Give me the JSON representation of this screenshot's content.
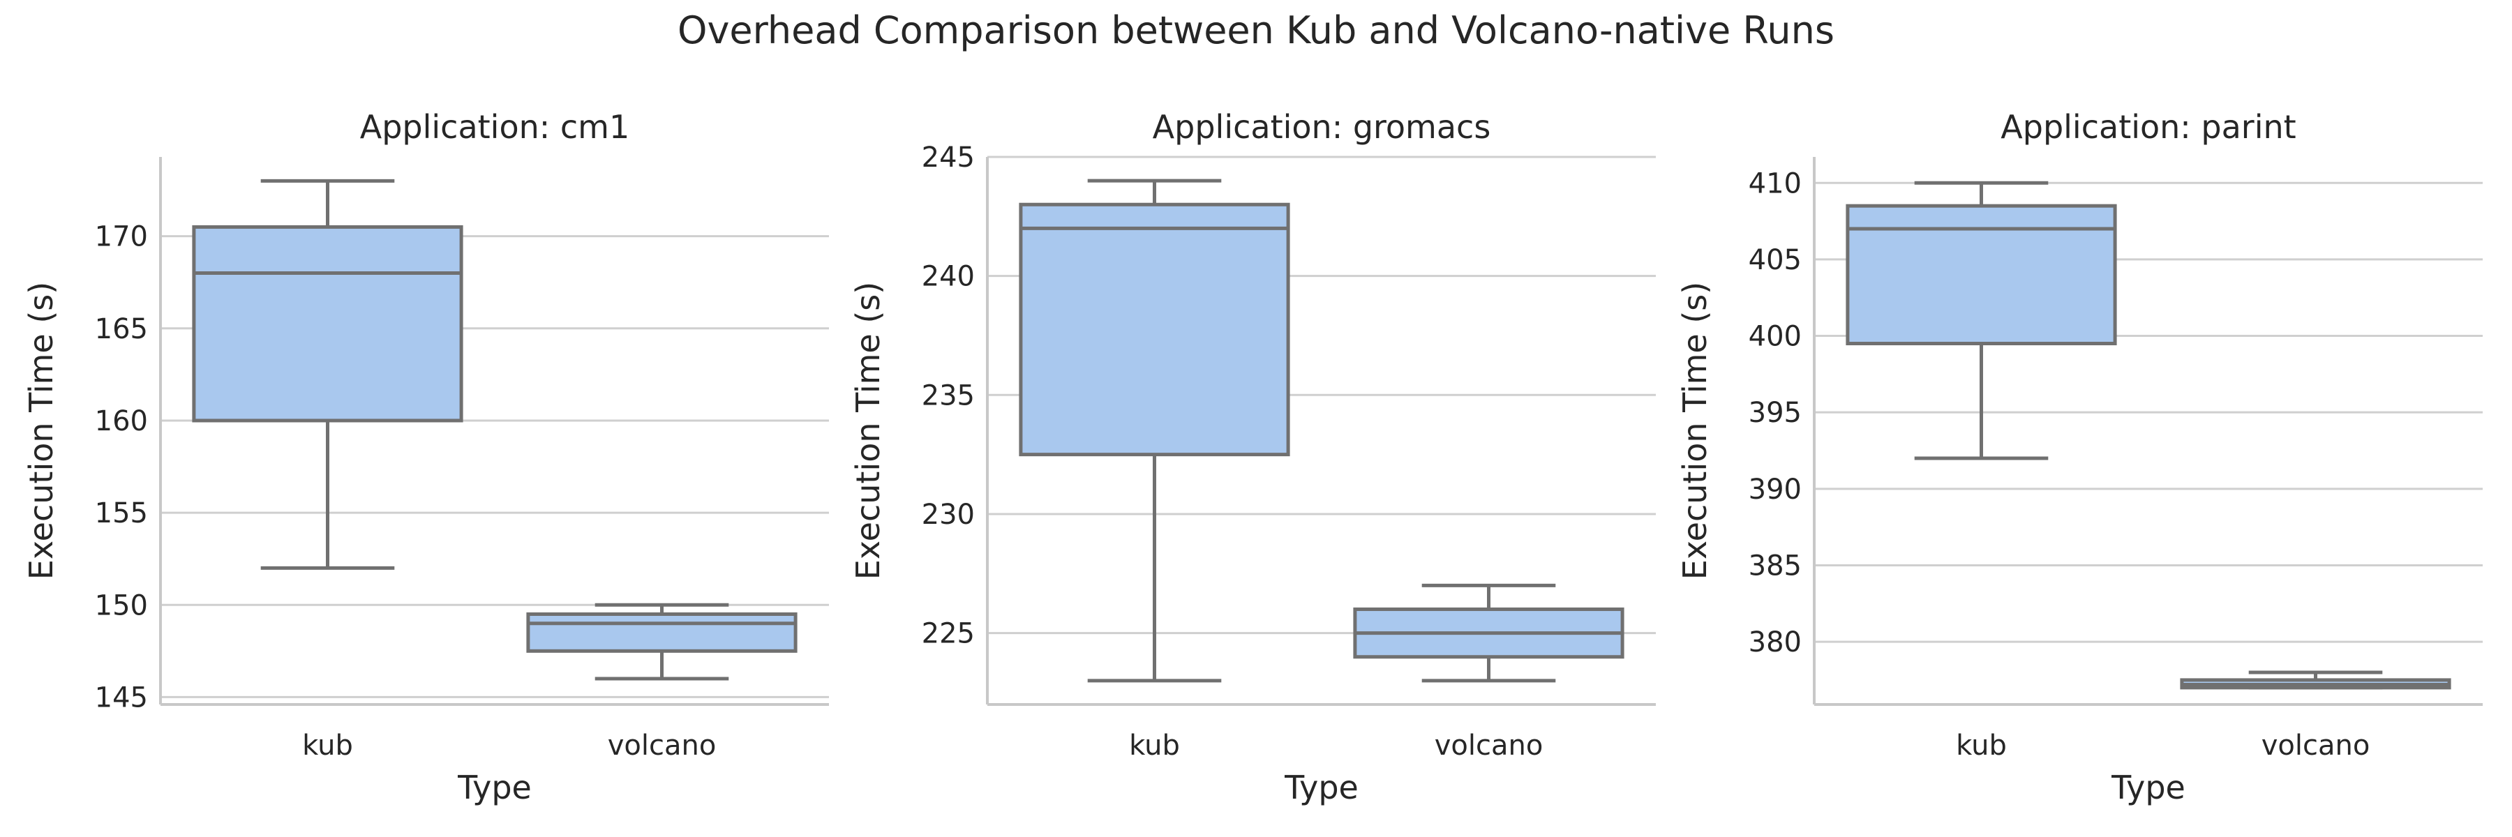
{
  "figure": {
    "title": "Overhead Comparison between Kub and Volcano-native Runs"
  },
  "style": {
    "box_fill": "#a9c8ee",
    "box_edge": "#707070",
    "grid_color": "#cfcfcf",
    "spine_color": "#c8c8c8",
    "text_color": "#262626"
  },
  "chart_data": [
    {
      "type": "box",
      "title": "Application: cm1",
      "xlabel": "Type",
      "ylabel": "Execution Time (s)",
      "categories": [
        "kub",
        "volcano"
      ],
      "ylim": [
        144.6,
        174.3
      ],
      "yticks": [
        145,
        150,
        155,
        160,
        165,
        170
      ],
      "grid": "horizontal",
      "boxes": [
        {
          "category": "kub",
          "whisker_low": 152,
          "q1": 160,
          "median": 168,
          "q3": 170.5,
          "whisker_high": 173
        },
        {
          "category": "volcano",
          "whisker_low": 146,
          "q1": 147.5,
          "median": 149,
          "q3": 149.5,
          "whisker_high": 150
        }
      ]
    },
    {
      "type": "box",
      "title": "Application: gromacs",
      "xlabel": "Type",
      "ylabel": "Execution Time (s)",
      "categories": [
        "kub",
        "volcano"
      ],
      "ylim": [
        222,
        245
      ],
      "yticks": [
        225,
        230,
        235,
        240,
        245
      ],
      "grid": "horizontal",
      "boxes": [
        {
          "category": "kub",
          "whisker_low": 223,
          "q1": 232.5,
          "median": 242,
          "q3": 243,
          "whisker_high": 244
        },
        {
          "category": "volcano",
          "whisker_low": 223,
          "q1": 224,
          "median": 225,
          "q3": 226,
          "whisker_high": 227
        }
      ]
    },
    {
      "type": "box",
      "title": "Application: parint",
      "xlabel": "Type",
      "ylabel": "Execution Time (s)",
      "categories": [
        "kub",
        "volcano"
      ],
      "ylim": [
        375.9,
        411.7
      ],
      "yticks": [
        380,
        385,
        390,
        395,
        400,
        405,
        410
      ],
      "grid": "horizontal",
      "boxes": [
        {
          "category": "kub",
          "whisker_low": 392,
          "q1": 399.5,
          "median": 407,
          "q3": 408.5,
          "whisker_high": 410
        },
        {
          "category": "volcano",
          "whisker_low": 377,
          "q1": 377,
          "median": 377.2,
          "q3": 377.5,
          "whisker_high": 378
        }
      ]
    }
  ]
}
